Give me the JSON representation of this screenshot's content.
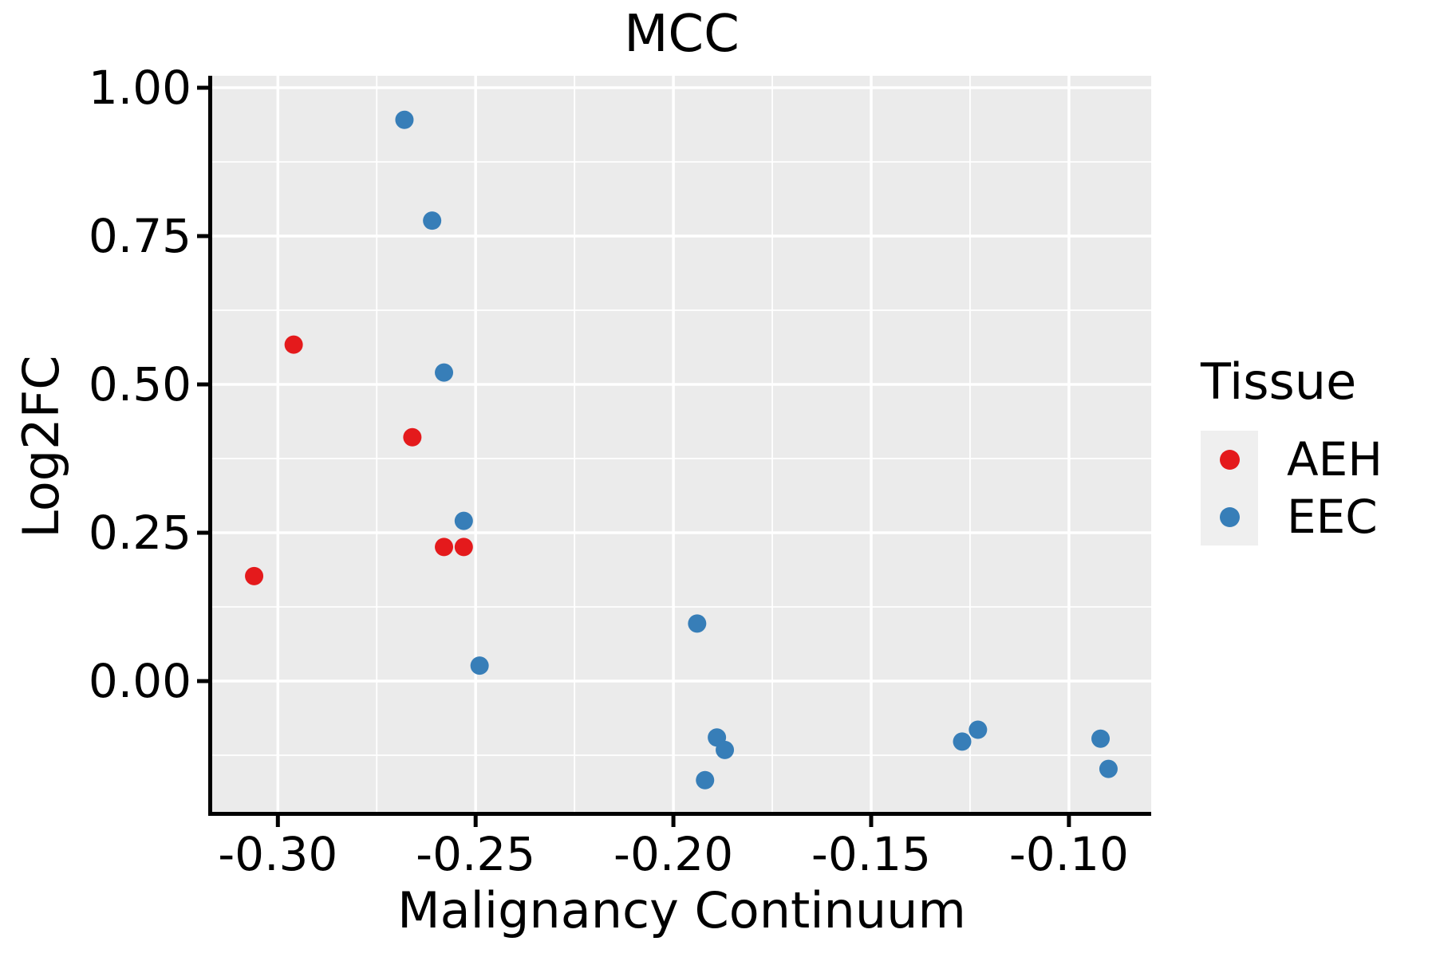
{
  "title": "MCC",
  "axes": {
    "x": {
      "label": "Malignancy Continuum"
    },
    "y": {
      "label": "Log2FC"
    }
  },
  "legend": {
    "title": "Tissue",
    "entries": [
      {
        "label": "AEH",
        "color": "#E41A1C"
      },
      {
        "label": "EEC",
        "color": "#377EB8"
      }
    ]
  },
  "colors": {
    "panel_background": "#EBEBEB",
    "gridline": "#FFFFFF",
    "axis_line": "#000000",
    "text": "#000000",
    "legend_key_background": "#EFEFEF",
    "aeh_red": "#E41A1C",
    "eec_blue": "#377EB8"
  },
  "chart_data": {
    "type": "scatter",
    "title": "MCC",
    "xlabel": "Malignancy Continuum",
    "ylabel": "Log2FC",
    "xlim": [
      -0.3166,
      -0.0792
    ],
    "ylim": [
      -0.2204,
      1.0202
    ],
    "x_ticks": [
      -0.3,
      -0.25,
      -0.2,
      -0.15,
      -0.1
    ],
    "x_tick_labels": [
      "-0.30",
      "-0.25",
      "-0.20",
      "-0.15",
      "-0.10"
    ],
    "x_minor_breaks": [
      -0.275,
      -0.225,
      -0.175,
      -0.125
    ],
    "y_ticks": [
      0.0,
      0.25,
      0.5,
      0.75,
      1.0
    ],
    "y_tick_labels": [
      "0.00",
      "0.25",
      "0.50",
      "0.75",
      "1.00"
    ],
    "y_minor_breaks": [
      -0.125,
      0.125,
      0.375,
      0.625,
      0.875
    ],
    "grid": true,
    "legend_position": "right",
    "series": [
      {
        "name": "AEH",
        "color": "#E41A1C",
        "points": [
          [
            -0.296,
            0.567
          ],
          [
            -0.266,
            0.411
          ],
          [
            -0.258,
            0.226
          ],
          [
            -0.253,
            0.226
          ],
          [
            -0.306,
            0.177
          ]
        ]
      },
      {
        "name": "EEC",
        "color": "#377EB8",
        "points": [
          [
            -0.268,
            0.946
          ],
          [
            -0.261,
            0.776
          ],
          [
            -0.258,
            0.52
          ],
          [
            -0.253,
            0.27
          ],
          [
            -0.249,
            0.026
          ],
          [
            -0.194,
            0.097
          ],
          [
            -0.189,
            -0.095
          ],
          [
            -0.187,
            -0.116
          ],
          [
            -0.192,
            -0.167
          ],
          [
            -0.127,
            -0.102
          ],
          [
            -0.123,
            -0.082
          ],
          [
            -0.092,
            -0.097
          ],
          [
            -0.09,
            -0.148
          ]
        ]
      }
    ]
  }
}
